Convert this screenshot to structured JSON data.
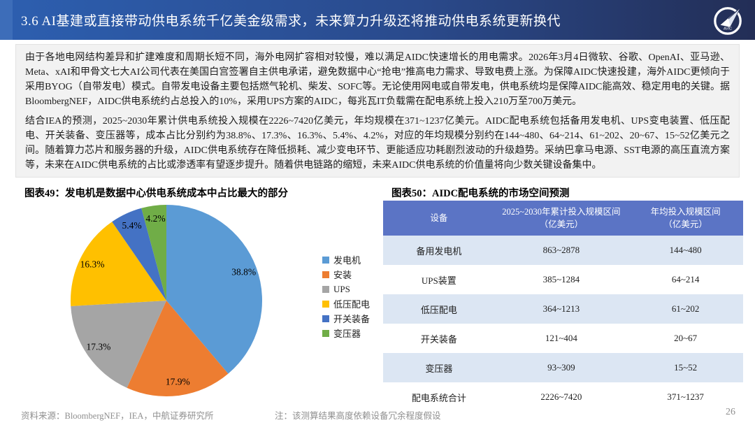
{
  "header": {
    "title": "3.6 AI基建或直接带动供电系统千亿美金级需求，未来算力升级还将推动供电系统更新换代",
    "logo_text": "AVIC",
    "gradient_left": "#2d5fb0",
    "gradient_right": "#232e56"
  },
  "body": {
    "paragraphs": [
      "由于各地电网结构差异和扩建难度和周期长短不同，海外电网扩容相对较慢，难以满足AIDC快速增长的用电需求。2026年3月4日微软、谷歌、OpenAI、亚马逊、Meta、xAI和甲骨文七大AI公司代表在美国白宫签署自主供电承诺，避免数据中心“抢电”推高电力需求、导致电费上涨。为保障AIDC快速投建，海外AIDC更倾向于采用BYOG（自带发电）模式。自带发电设备主要包括燃气轮机、柴发、SOFC等。无论使用网电或自带发电，供电系统均是保障AIDC能高效、稳定用电的关键。据BloombergNEF，AIDC供电系统约占总投入的10%，采用UPS方案的AIDC，每兆瓦IT负载需在配电系统上投入210万至700万美元。",
      "结合IEA的预测，2025~2030年累计供电系统投入规模在2226~7420亿美元，年均规模在371~1237亿美元。AIDC配电系统包括备用发电机、UPS变电装置、低压配电、开关装备、变压器等，成本占比分别约为38.8%、17.3%、16.3%、5.4%、4.2%，对应的年均规模分别约在144~480、64~214、61~202、20~67、15~52亿美元之间。随着算力芯片和服务器的升级，AIDC供电系统存在降低损耗、减少变电环节、更能适应功耗剧烈波动的升级趋势。采纳巴拿马电源、SST电源的高压直流方案等，未来在AIDC供电系统的占比或渗透率有望逐步提升。随着供电链路的缩短，未来AIDC供电系统的价值量将向少数关键设备集中。"
    ]
  },
  "figure49": {
    "caption": "图表49：发电机是数据中心供电系统成本中占比最大的部分"
  },
  "figure50": {
    "caption": "图表50：AIDC配电系统的市场空间预测"
  },
  "chart_data": [
    {
      "type": "pie",
      "title": "发电机是数据中心供电系统成本中占比最大的部分",
      "labels": [
        "发电机",
        "安装",
        "UPS",
        "低压配电",
        "开关装备",
        "变压器"
      ],
      "values": [
        38.8,
        17.9,
        17.3,
        16.3,
        5.4,
        4.2
      ],
      "value_labels": [
        "38.8%",
        "17.9%",
        "17.3%",
        "16.3%",
        "5.4%",
        "4.2%"
      ],
      "colors": [
        "#5b9bd5",
        "#ed7d31",
        "#a5a5a5",
        "#ffc000",
        "#4472c4",
        "#70ad47"
      ],
      "start_angle_deg": 0,
      "direction": "clockwise",
      "legend_position": "right"
    },
    {
      "type": "table",
      "title": "AIDC配电系统的市场空间预测",
      "columns": [
        [
          "设备"
        ],
        [
          "2025~2030年累计投入规模区间",
          "（亿美元）"
        ],
        [
          "年均投入规模区间",
          "（亿美元）"
        ]
      ],
      "rows": [
        [
          "备用发电机",
          "863~2878",
          "144~480"
        ],
        [
          "UPS装置",
          "385~1284",
          "64~214"
        ],
        [
          "低压配电",
          "364~1213",
          "61~202"
        ],
        [
          "开关装备",
          "121~404",
          "20~67"
        ],
        [
          "变压器",
          "93~309",
          "15~52"
        ],
        [
          "配电系统合计",
          "2226~7420",
          "371~1237"
        ]
      ],
      "header_bg": "#5b74c5",
      "header_text_color": "#ffffff",
      "alt_row_bg": "#dce6f3",
      "row_bg": "#ffffff"
    }
  ],
  "footer": {
    "source": "资料来源：BloombergNEF，IEA，中航证券研究所",
    "note": "注：该测算结果高度依赖设备冗余程度假设",
    "page_number": "26"
  }
}
